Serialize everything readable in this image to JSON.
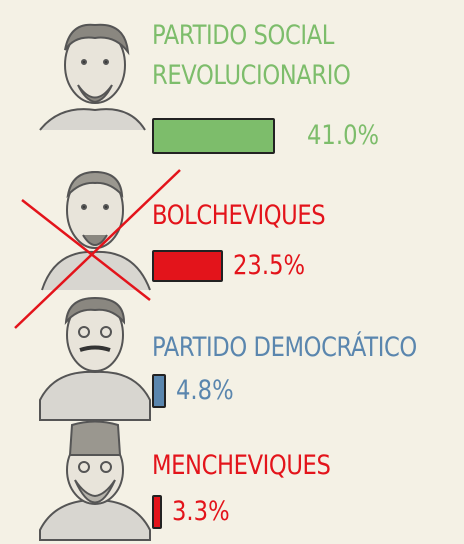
{
  "chart_data": {
    "type": "bar",
    "orientation": "horizontal",
    "categories": [
      "PARTIDO SOCIAL REVOLUCIONARIO",
      "BOLCHEVIQUES",
      "PARTIDO DEMOCRÁTICO",
      "MENCHEVIQUES"
    ],
    "values": [
      41.0,
      23.5,
      4.8,
      3.3
    ],
    "value_labels": [
      "41.0%",
      "23.5%",
      "4.8%",
      "3.3%"
    ],
    "colors": [
      "#7dbd6b",
      "#e3141b",
      "#5a86ae",
      "#e3141b"
    ]
  }
}
